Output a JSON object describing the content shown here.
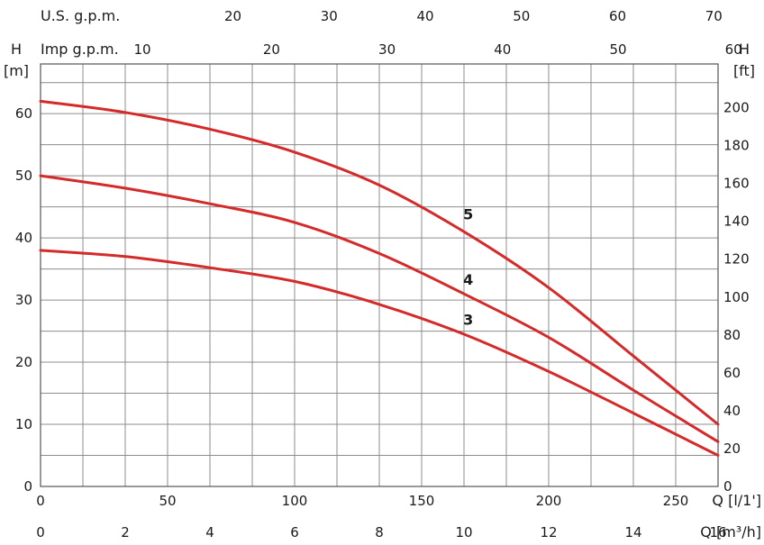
{
  "chart_data": {
    "type": "line",
    "title": "",
    "colors": {
      "curve": "#d42a2a",
      "grid": "#8c8c8c",
      "text": "#1a1a1a"
    },
    "grid": true,
    "axes": {
      "x_bottom_primary": {
        "label": "Q [m³/h]",
        "range": [
          0,
          16
        ],
        "ticks": [
          0,
          2,
          4,
          6,
          8,
          10,
          12,
          14,
          16
        ]
      },
      "x_bottom_secondary": {
        "label": "Q [l/1']",
        "ticks": [
          0,
          50,
          100,
          150,
          200,
          250
        ],
        "per_primary_unit": 16.6667
      },
      "x_top_us": {
        "label": "U.S. g.p.m.",
        "ticks": [
          20,
          30,
          40,
          50,
          60,
          70
        ],
        "per_primary_unit": 4.4029
      },
      "x_top_imp": {
        "label": "Imp g.p.m.",
        "ticks": [
          10,
          20,
          30,
          40,
          50,
          60
        ],
        "per_primary_unit": 3.6662
      },
      "y_left": {
        "label_line1": "H",
        "label_line2": "[m]",
        "range": [
          0,
          68
        ],
        "ticks": [
          0,
          10,
          20,
          30,
          40,
          50,
          60
        ]
      },
      "y_right": {
        "label_line1": "H",
        "label_line2": "[ft]",
        "ticks": [
          0,
          20,
          40,
          60,
          80,
          100,
          120,
          140,
          160,
          180,
          200
        ],
        "per_primary_unit": 3.28084
      }
    },
    "series": [
      {
        "name": "5",
        "x": [
          0,
          2,
          4,
          6,
          8,
          10,
          12,
          14,
          16
        ],
        "y": [
          62,
          60.2,
          57.5,
          53.8,
          48.5,
          41,
          32,
          21,
          10
        ]
      },
      {
        "name": "4",
        "x": [
          0,
          2,
          4,
          6,
          8,
          10,
          12,
          14,
          16
        ],
        "y": [
          50,
          48,
          45.5,
          42.5,
          37.5,
          31,
          24,
          15.5,
          7.2
        ]
      },
      {
        "name": "3",
        "x": [
          0,
          2,
          4,
          6,
          8,
          10,
          12,
          14,
          16
        ],
        "y": [
          38,
          37,
          35.2,
          33,
          29.3,
          24.5,
          18.5,
          11.8,
          5
        ]
      }
    ]
  }
}
